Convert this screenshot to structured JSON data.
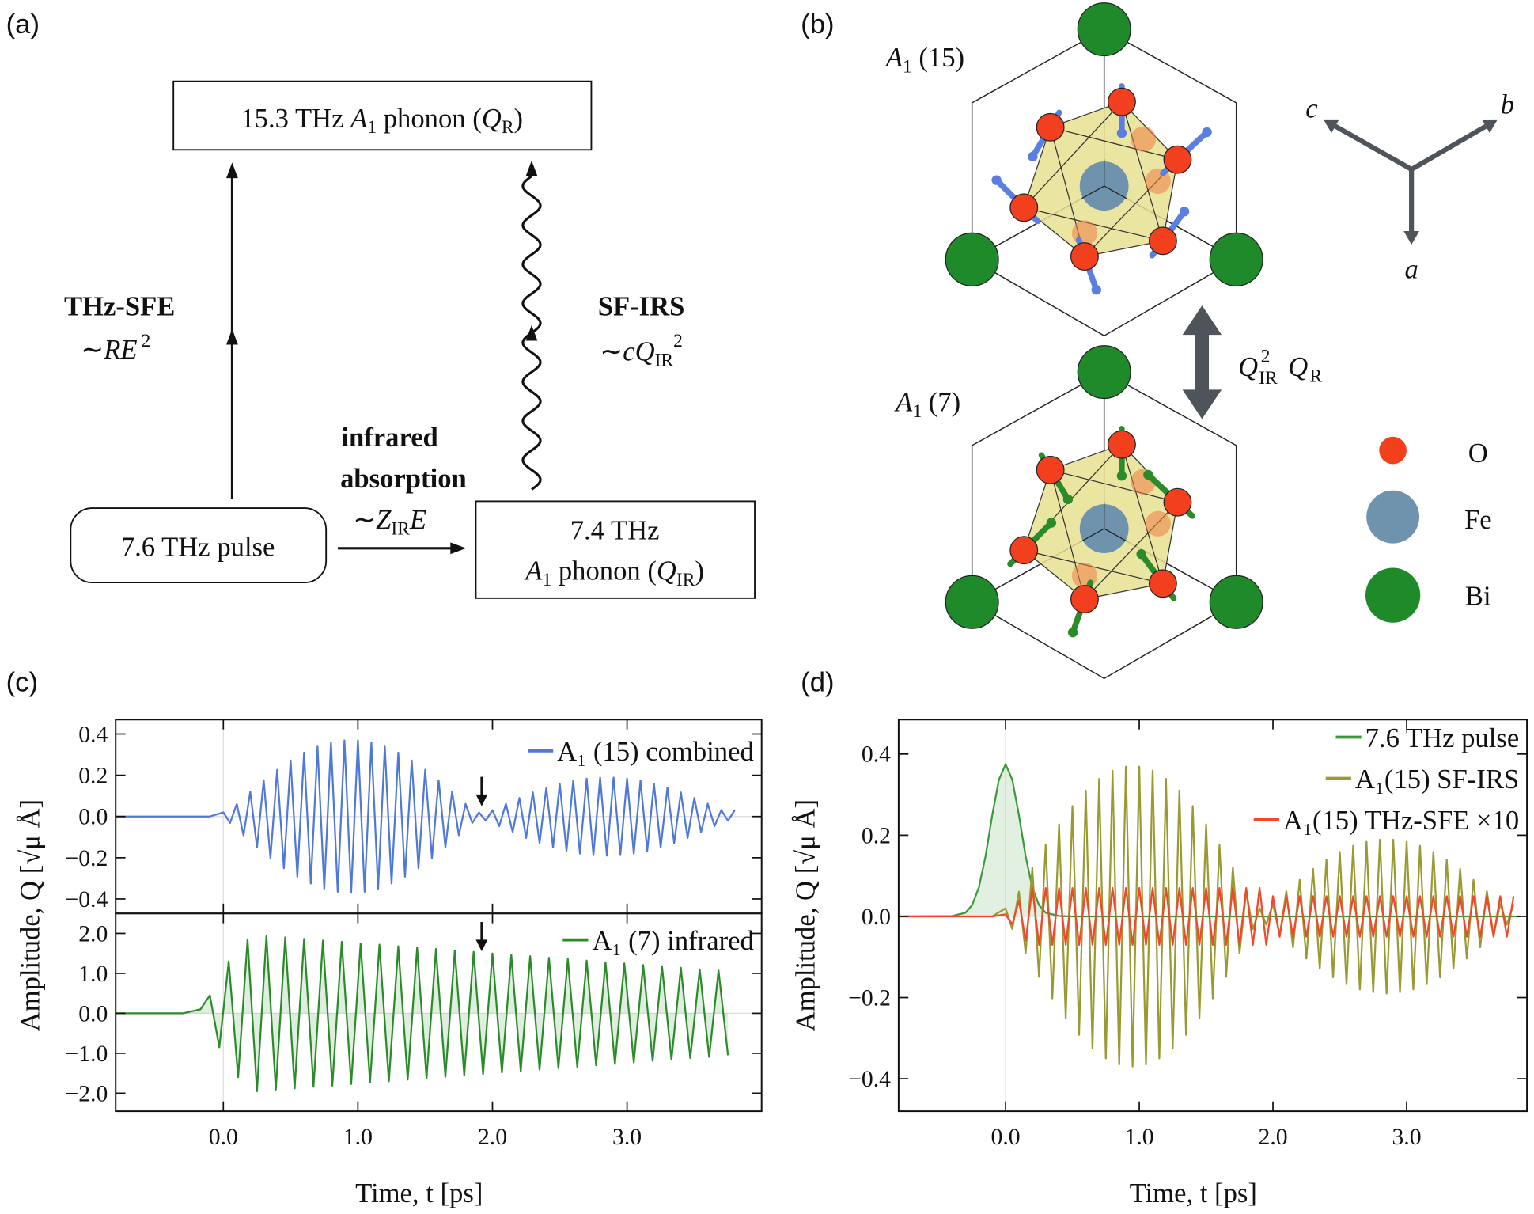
{
  "panel_labels": [
    "(a)",
    "(b)",
    "(c)",
    "(d)"
  ],
  "panel_a": {
    "top_box": [
      "15.3 THz ",
      "A",
      "1",
      " phonon (",
      "Q",
      "R",
      ")"
    ],
    "sfe_label": "THz-SFE",
    "sfe_formula": [
      "∼",
      "RE",
      "2"
    ],
    "irs_label": "SF-IRS",
    "irs_formula": [
      "∼",
      "cQ",
      "IR",
      "2"
    ],
    "absorption_label": [
      "infrared",
      "absorption"
    ],
    "absorption_formula": [
      "∼",
      "Z",
      "IR",
      "E"
    ],
    "pulse_box": "7.6 THz pulse",
    "ir_box": [
      "7.4 THz",
      "A",
      "1",
      " phonon (",
      "Q",
      "IR",
      ")"
    ]
  },
  "panel_b": {
    "top_mode": [
      "A",
      "1",
      " (15)"
    ],
    "bottom_mode": [
      "A",
      "1",
      " (7)"
    ],
    "axes": [
      "c",
      "b",
      "a"
    ],
    "coupling": [
      "Q",
      "2",
      "IR",
      "Q",
      "R"
    ],
    "legend": [
      "O",
      "Fe",
      "Bi"
    ]
  },
  "chart_data": [
    {
      "type": "line",
      "ylabel": "Amplitude,  Q  [√μ Å]",
      "xlim": [
        -0.8,
        4.0
      ],
      "ylim": [
        -0.47,
        0.47
      ],
      "xticks": [
        {
          "value": 0,
          "label": "0.0"
        },
        {
          "value": 1,
          "label": "1.0"
        },
        {
          "value": 2,
          "label": "2.0"
        },
        {
          "value": 3,
          "label": "3.0"
        }
      ],
      "show_xtick_labels": false,
      "yticks": [
        {
          "value": -0.4,
          "label": "−0.4"
        },
        {
          "value": -0.2,
          "label": "−0.2"
        },
        {
          "value": 0,
          "label": "0.0"
        },
        0.2,
        0.4
      ],
      "zero_lines": true,
      "legend": "upper right",
      "arrows": [
        {
          "x": 1.92,
          "y": 0.05
        }
      ],
      "x": [
        -0.8,
        -0.1,
        0,
        0.05,
        0.1,
        0.15,
        0.2,
        0.25,
        0.3,
        0.35,
        0.4,
        0.45,
        0.5,
        0.55,
        0.6,
        0.65,
        0.7,
        0.75,
        0.8,
        0.85,
        0.9,
        0.95,
        1,
        1.05,
        1.1,
        1.15,
        1.2,
        1.25,
        1.3,
        1.35,
        1.4,
        1.45,
        1.5,
        1.55,
        1.6,
        1.65,
        1.7,
        1.75,
        1.8,
        1.85,
        1.9,
        1.95,
        2,
        2.05,
        2.1,
        2.15,
        2.2,
        2.25,
        2.3,
        2.35,
        2.4,
        2.45,
        2.5,
        2.55,
        2.6,
        2.65,
        2.7,
        2.75,
        2.8,
        2.85,
        2.9,
        2.95,
        3,
        3.05,
        3.1,
        3.15,
        3.2,
        3.25,
        3.3,
        3.35,
        3.4,
        3.45,
        3.5,
        3.55,
        3.6,
        3.65,
        3.7,
        3.75,
        3.8
      ],
      "series": [
        {
          "name": "A₁ (15) combined",
          "color": "#4f78d8",
          "values": [
            0,
            0,
            0.02,
            -0.031,
            0.061,
            -0.091,
            0.12,
            -0.149,
            0.176,
            -0.202,
            0.227,
            -0.251,
            0.272,
            -0.292,
            0.31,
            -0.325,
            0.339,
            -0.35,
            0.359,
            -0.365,
            0.369,
            -0.37,
            0.369,
            -0.365,
            0.359,
            -0.35,
            0.339,
            -0.325,
            0.31,
            -0.292,
            0.272,
            -0.251,
            0.227,
            -0.202,
            0.176,
            -0.149,
            0.12,
            -0.091,
            0.061,
            -0.031,
            0.02,
            -0.02,
            0.031,
            -0.047,
            0.062,
            -0.076,
            0.09,
            -0.104,
            0.117,
            -0.129,
            0.14,
            -0.15,
            0.159,
            -0.167,
            0.174,
            -0.18,
            0.184,
            -0.187,
            0.189,
            -0.19,
            0.189,
            -0.187,
            0.184,
            -0.18,
            0.174,
            -0.167,
            0.159,
            -0.15,
            0.14,
            -0.129,
            0.117,
            -0.104,
            0.09,
            -0.076,
            0.062,
            -0.047,
            0.031,
            -0.02,
            0.03
          ]
        }
      ]
    },
    {
      "type": "line",
      "xlabel": "Time,  t  [ps]",
      "xlim": [
        -0.8,
        4.0
      ],
      "ylim": [
        -2.45,
        2.5
      ],
      "xticks": [
        {
          "value": 0,
          "label": "0.0"
        },
        {
          "value": 1,
          "label": "1.0"
        },
        {
          "value": 2,
          "label": "2.0"
        },
        {
          "value": 3,
          "label": "3.0"
        }
      ],
      "show_xtick_labels": true,
      "yticks": [
        {
          "value": -2,
          "label": "−2.0"
        },
        {
          "value": -1,
          "label": "−1.0"
        },
        {
          "value": 0,
          "label": "0.0"
        },
        {
          "value": 1,
          "label": "1.0"
        },
        {
          "value": 2,
          "label": "2.0"
        }
      ],
      "zero_lines": true,
      "legend": "upper right",
      "arrows": [
        {
          "x": 1.92,
          "y": 1.55
        }
      ],
      "x": [
        -0.8,
        -0.3,
        -0.17,
        -0.1,
        -0.03,
        0.04,
        0.11,
        0.18,
        0.25,
        0.32,
        0.39,
        0.46,
        0.53,
        0.6,
        0.67,
        0.74,
        0.81,
        0.88,
        0.95,
        1.02,
        1.09,
        1.16,
        1.23,
        1.3,
        1.37,
        1.44,
        1.51,
        1.58,
        1.65,
        1.72,
        1.79,
        1.86,
        1.93,
        2,
        2.07,
        2.14,
        2.21,
        2.28,
        2.35,
        2.42,
        2.49,
        2.56,
        2.63,
        2.7,
        2.77,
        2.84,
        2.91,
        2.98,
        3.05,
        3.12,
        3.19,
        3.26,
        3.33,
        3.4,
        3.47,
        3.54,
        3.61,
        3.68,
        3.75
      ],
      "series": [
        {
          "name": "A₁ (7) infrared",
          "color": "#2b8b2b",
          "fill": true,
          "values": [
            0,
            0,
            0.1,
            0.45,
            -0.85,
            1.3,
            -1.6,
            1.85,
            -1.95,
            1.93,
            -1.91,
            1.9,
            -1.88,
            1.86,
            -1.84,
            1.82,
            -1.81,
            1.79,
            -1.77,
            1.75,
            -1.73,
            1.72,
            -1.7,
            1.68,
            -1.66,
            1.64,
            -1.63,
            1.61,
            -1.59,
            1.57,
            -1.55,
            1.54,
            -1.52,
            1.5,
            -1.48,
            1.46,
            -1.45,
            1.43,
            -1.41,
            1.39,
            -1.37,
            1.36,
            -1.34,
            1.32,
            -1.3,
            1.28,
            -1.27,
            1.25,
            -1.23,
            1.21,
            -1.19,
            1.18,
            -1.16,
            1.14,
            -1.12,
            1.1,
            -1.09,
            1.07,
            -1.05
          ]
        }
      ]
    },
    {
      "type": "line",
      "ylabel": "Amplitude,  Q  [√μ Å]",
      "xlabel": "Time,  t  [ps]",
      "xlim": [
        -0.8,
        3.9
      ],
      "ylim": [
        -0.48,
        0.485
      ],
      "xticks": [
        {
          "value": 0,
          "label": "0.0"
        },
        {
          "value": 1,
          "label": "1.0"
        },
        {
          "value": 2,
          "label": "2.0"
        },
        {
          "value": 3,
          "label": "3.0"
        }
      ],
      "show_xtick_labels": true,
      "yticks": [
        {
          "value": -0.4,
          "label": "−0.4"
        },
        {
          "value": -0.2,
          "label": "−0.2"
        },
        {
          "value": 0,
          "label": "0.0"
        },
        0.2,
        0.4
      ],
      "zero_lines": true,
      "legend": "upper right",
      "x": [
        -0.8,
        -0.1,
        0,
        0.05,
        0.1,
        0.15,
        0.2,
        0.25,
        0.3,
        0.35,
        0.4,
        0.45,
        0.5,
        0.55,
        0.6,
        0.65,
        0.7,
        0.75,
        0.8,
        0.85,
        0.9,
        0.95,
        1,
        1.05,
        1.1,
        1.15,
        1.2,
        1.25,
        1.3,
        1.35,
        1.4,
        1.45,
        1.5,
        1.55,
        1.6,
        1.65,
        1.7,
        1.75,
        1.8,
        1.85,
        1.9,
        1.95,
        2,
        2.05,
        2.1,
        2.15,
        2.2,
        2.25,
        2.3,
        2.35,
        2.4,
        2.45,
        2.5,
        2.55,
        2.6,
        2.65,
        2.7,
        2.75,
        2.8,
        2.85,
        2.9,
        2.95,
        3,
        3.05,
        3.1,
        3.15,
        3.2,
        3.25,
        3.3,
        3.35,
        3.4,
        3.45,
        3.5,
        3.55,
        3.6,
        3.65,
        3.7,
        3.75,
        3.8
      ],
      "series": [
        {
          "name": "7.6 THz pulse",
          "color": "#3a9a3a",
          "fill": true,
          "x": [
            -0.8,
            -0.4,
            -0.3,
            -0.25,
            -0.2,
            -0.15,
            -0.1,
            -0.05,
            0,
            0.05,
            0.1,
            0.15,
            0.2,
            0.25,
            0.3,
            0.4,
            0.5,
            3.85
          ],
          "values": [
            0,
            0.001,
            0.009,
            0.028,
            0.071,
            0.148,
            0.249,
            0.337,
            0.375,
            0.337,
            0.249,
            0.148,
            0.071,
            0.028,
            0.009,
            0.001,
            0,
            0
          ]
        },
        {
          "name": "A₁(15) SF-IRS",
          "color": "#9a9a33",
          "values": [
            0,
            0,
            0.02,
            -0.031,
            0.061,
            -0.091,
            0.12,
            -0.149,
            0.176,
            -0.202,
            0.227,
            -0.251,
            0.272,
            -0.292,
            0.31,
            -0.325,
            0.339,
            -0.35,
            0.359,
            -0.365,
            0.369,
            -0.37,
            0.369,
            -0.365,
            0.359,
            -0.35,
            0.339,
            -0.325,
            0.31,
            -0.292,
            0.272,
            -0.251,
            0.227,
            -0.202,
            0.176,
            -0.149,
            0.12,
            -0.091,
            0.061,
            -0.031,
            0.02,
            -0.02,
            0.031,
            -0.047,
            0.062,
            -0.076,
            0.09,
            -0.104,
            0.117,
            -0.129,
            0.14,
            -0.15,
            0.159,
            -0.167,
            0.174,
            -0.18,
            0.184,
            -0.187,
            0.189,
            -0.19,
            0.189,
            -0.187,
            0.184,
            -0.18,
            0.174,
            -0.167,
            0.159,
            -0.15,
            0.14,
            -0.129,
            0.117,
            -0.104,
            0.09,
            -0.076,
            0.062,
            -0.047,
            0.031,
            -0.02,
            0.03
          ]
        },
        {
          "name": "A₁(15) THz-SFE ×10",
          "color": "#f2482a",
          "values": [
            0,
            0,
            0.005,
            -0.02,
            0.04,
            -0.06,
            0.07,
            -0.07,
            0.07,
            -0.07,
            0.07,
            -0.07,
            0.07,
            -0.07,
            0.07,
            -0.07,
            0.07,
            -0.07,
            0.07,
            -0.07,
            0.07,
            -0.07,
            0.07,
            -0.07,
            0.07,
            -0.07,
            0.07,
            -0.07,
            0.07,
            -0.07,
            0.07,
            -0.07,
            0.07,
            -0.07,
            0.07,
            -0.07,
            0.07,
            -0.07,
            0.07,
            -0.07,
            0.07,
            -0.07,
            0.05,
            -0.05,
            0.05,
            -0.05,
            0.05,
            -0.05,
            0.05,
            -0.05,
            0.05,
            -0.05,
            0.05,
            -0.05,
            0.05,
            -0.05,
            0.05,
            -0.05,
            0.05,
            -0.05,
            0.05,
            -0.05,
            0.05,
            -0.05,
            0.05,
            -0.05,
            0.05,
            -0.05,
            0.05,
            -0.05,
            0.05,
            -0.05,
            0.05,
            -0.05,
            0.05,
            -0.05,
            0.05,
            -0.05,
            0.05
          ]
        }
      ]
    }
  ]
}
